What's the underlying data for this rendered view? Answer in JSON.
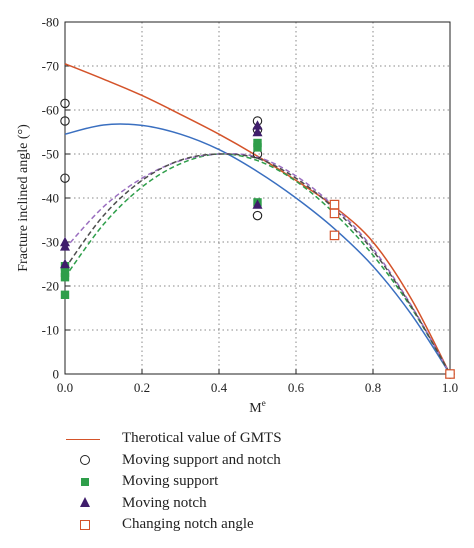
{
  "chart_data": {
    "type": "scatter",
    "xlabel": "M",
    "xlabel_superscript": "e",
    "ylabel": "Fracture inclined angle (°)",
    "xlim": [
      0.0,
      1.0
    ],
    "ylim": [
      0,
      -80
    ],
    "y_axis_inverted": true,
    "x_ticks": [
      "0.0",
      "0.2",
      "0.4",
      "0.6",
      "0.8",
      "1.0"
    ],
    "x_tick_values": [
      0.0,
      0.2,
      0.4,
      0.6,
      0.8,
      1.0
    ],
    "y_ticks": [
      "0",
      "-10",
      "-20",
      "-30",
      "-40",
      "-50",
      "-60",
      "-70",
      "-80"
    ],
    "y_tick_values": [
      0,
      -10,
      -20,
      -30,
      -40,
      -50,
      -60,
      -70,
      -80
    ],
    "grid": "dotted",
    "legend_position": "bottom",
    "lines": [
      {
        "name": "Therotical value of GMTS",
        "color": "#d4532a",
        "style": "solid",
        "in_legend": true,
        "x": [
          0.0,
          0.1,
          0.2,
          0.3,
          0.4,
          0.5,
          0.6,
          0.7,
          0.8,
          0.9,
          1.0
        ],
        "y": [
          -70.5,
          -67.0,
          -63.3,
          -59.0,
          -54.5,
          -49.5,
          -44.0,
          -38.0,
          -30.0,
          -17.0,
          0
        ]
      },
      {
        "color": "#3a6fc0",
        "style": "solid",
        "in_legend": false,
        "x": [
          0.0,
          0.1,
          0.2,
          0.3,
          0.4,
          0.5,
          0.6,
          0.7,
          0.8,
          0.9,
          1.0
        ],
        "y": [
          -54.5,
          -56.6,
          -56.5,
          -54.5,
          -51.0,
          -46.0,
          -40.0,
          -33.0,
          -24.5,
          -13.5,
          0
        ]
      },
      {
        "color": "#2e9e4a",
        "style": "dashed",
        "in_legend": false,
        "x": [
          0.0,
          0.1,
          0.2,
          0.3,
          0.4,
          0.5,
          0.6,
          0.7,
          0.8,
          0.9,
          1.0
        ],
        "y": [
          -22.0,
          -34.0,
          -42.5,
          -47.8,
          -50.0,
          -48.5,
          -43.8,
          -36.5,
          -27.0,
          -15.0,
          0
        ]
      },
      {
        "color": "#9b6fc0",
        "style": "dashed",
        "in_legend": false,
        "x": [
          0.0,
          0.1,
          0.2,
          0.3,
          0.4,
          0.5,
          0.6,
          0.7,
          0.8,
          0.9,
          1.0
        ],
        "y": [
          -28.5,
          -38.0,
          -44.5,
          -48.5,
          -50.0,
          -49.3,
          -45.0,
          -38.0,
          -28.5,
          -15.5,
          0
        ]
      },
      {
        "color": "#4d4d4d",
        "style": "dashed",
        "in_legend": false,
        "x": [
          0.0,
          0.1,
          0.2,
          0.3,
          0.4,
          0.5,
          0.6,
          0.7,
          0.8,
          0.9,
          1.0
        ],
        "y": [
          -24.0,
          -36.0,
          -44.0,
          -48.6,
          -50.0,
          -49.0,
          -44.5,
          -37.5,
          -28.0,
          -15.3,
          0
        ]
      }
    ],
    "scatter_series": [
      {
        "name": "Moving support and notch",
        "marker": "circle-open",
        "color": "#222222",
        "points": [
          [
            0.0,
            -61.5
          ],
          [
            0.0,
            -57.5
          ],
          [
            0.0,
            -44.5
          ],
          [
            0.5,
            -57.5
          ],
          [
            0.5,
            -55.5
          ],
          [
            0.5,
            -50.0
          ],
          [
            0.5,
            -36.0
          ],
          [
            1.0,
            0
          ]
        ]
      },
      {
        "name": "Moving support",
        "marker": "square-filled",
        "color": "#2e9e4a",
        "points": [
          [
            0.0,
            -24.5
          ],
          [
            0.0,
            -23.0
          ],
          [
            0.0,
            -22.0
          ],
          [
            0.0,
            -18.0
          ],
          [
            0.5,
            -52.5
          ],
          [
            0.5,
            -51.5
          ],
          [
            0.5,
            -39.0
          ],
          [
            1.0,
            0
          ]
        ]
      },
      {
        "name": "Moving notch",
        "marker": "triangle-filled",
        "color": "#3f1d6b",
        "points": [
          [
            0.0,
            -30.0
          ],
          [
            0.0,
            -29.0
          ],
          [
            0.0,
            -25.0
          ],
          [
            0.5,
            -56.5
          ],
          [
            0.5,
            -55.0
          ],
          [
            0.5,
            -38.5
          ],
          [
            1.0,
            0
          ]
        ]
      },
      {
        "name": "Changing notch angle",
        "marker": "square-open",
        "color": "#d4532a",
        "points": [
          [
            0.7,
            -38.5
          ],
          [
            0.7,
            -36.5
          ],
          [
            0.7,
            -31.5
          ],
          [
            1.0,
            0
          ]
        ]
      }
    ]
  },
  "legend": {
    "items": [
      {
        "label": "Therotical value of GMTS"
      },
      {
        "label": "Moving support and notch"
      },
      {
        "label": "Moving support"
      },
      {
        "label": "Moving notch"
      },
      {
        "label": "Changing notch angle"
      }
    ]
  }
}
